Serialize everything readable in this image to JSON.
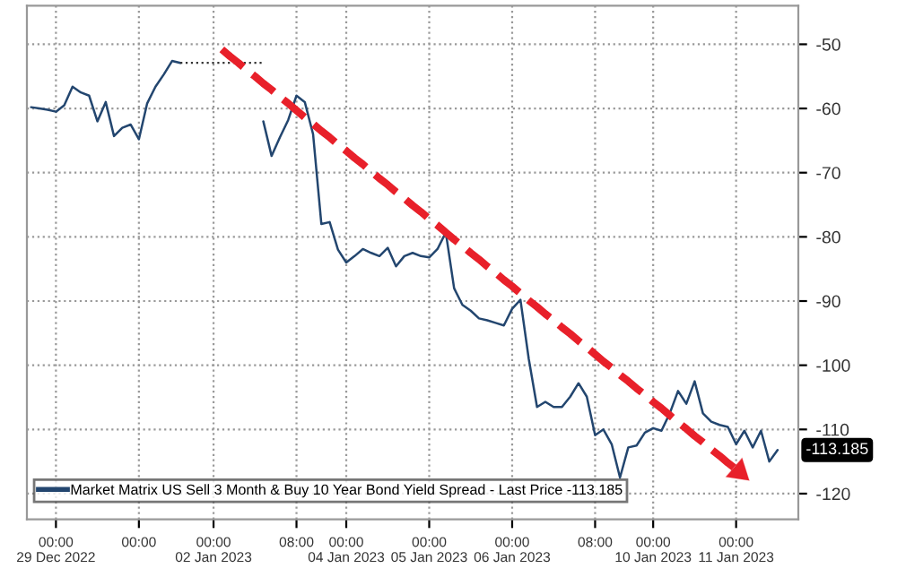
{
  "chart_data": {
    "type": "line",
    "categories": [
      null,
      null,
      null,
      "00:00\n29 Dec 2022",
      null,
      null,
      null,
      null,
      null,
      null,
      null,
      null,
      null,
      "00:00",
      null,
      null,
      null,
      null,
      null,
      null,
      null,
      null,
      "00:00\n02 Jan 2023",
      null,
      null,
      null,
      null,
      null,
      null,
      null,
      null,
      null,
      "08:00",
      null,
      null,
      null,
      null,
      null,
      "00:00\n04 Jan 2023",
      null,
      null,
      null,
      null,
      null,
      null,
      null,
      null,
      null,
      "00:00\n05 Jan 2023",
      null,
      null,
      null,
      null,
      null,
      null,
      null,
      null,
      null,
      "00:00\n06 Jan 2023",
      null,
      null,
      null,
      null,
      null,
      null,
      null,
      null,
      null,
      "08:00",
      null,
      null,
      null,
      null,
      null,
      null,
      "00:00\n10 Jan 2023",
      null,
      null,
      null,
      null,
      null,
      null,
      null,
      null,
      null,
      "00:00\n11 Jan 2023",
      null,
      null,
      null,
      null,
      null,
      null,
      null
    ],
    "series": [
      {
        "name": "Market Matrix US Sell 3 Month & Buy 10 Year Bond Yield Spread - Last Price -113.185",
        "color": "#23466f",
        "line_style": "solid",
        "values": [
          -59.8,
          -60,
          -60.2,
          -60.5,
          -59.5,
          -56.6,
          -57.5,
          -58,
          -62,
          -59,
          -64.3,
          -63,
          -62.5,
          -64.8,
          -59.2,
          -56.6,
          -54.7,
          -52.6,
          -52.9,
          null,
          null,
          null,
          null,
          null,
          null,
          null,
          null,
          null,
          -62,
          -67.4,
          -64.5,
          -61.8,
          -58,
          -59,
          -64,
          -78,
          -77.7,
          -82,
          -84,
          -83,
          -81.9,
          -82.5,
          -83,
          -81.7,
          -84.6,
          -83,
          -82.5,
          -83,
          -83.2,
          -81.9,
          -79.3,
          -88,
          -90.6,
          -91.5,
          -92.7,
          -93,
          -93.4,
          -93.8,
          -91.2,
          -89.8,
          -99,
          -106.5,
          -105.7,
          -106.5,
          -106.5,
          -104.9,
          -102.8,
          -104.9,
          -110.9,
          -110,
          -112.3,
          -117.5,
          -112.8,
          -112.5,
          -110.5,
          -109.8,
          -110.2,
          -107.5,
          -104,
          -106,
          -102.5,
          -107.5,
          -108.8,
          -109.3,
          -109.6,
          -112.3,
          -110.2,
          -112.8,
          -110.2,
          -115,
          -113.2,
          null,
          null
        ]
      },
      {
        "color": "#333333",
        "line_style": "dotted",
        "values": [
          null,
          null,
          null,
          null,
          null,
          null,
          null,
          null,
          null,
          null,
          null,
          null,
          null,
          null,
          null,
          null,
          null,
          null,
          -52.9,
          -52.9,
          -52.9,
          -52.9,
          -52.9,
          -52.9,
          -52.9,
          -52.9,
          -52.9,
          -52.9,
          -52.9,
          null,
          null,
          null,
          null,
          null,
          null,
          null,
          null,
          null,
          null,
          null,
          null,
          null,
          null,
          null,
          null,
          null,
          null,
          null,
          null,
          null,
          null,
          null,
          null,
          null,
          null,
          null,
          null,
          null,
          null,
          null,
          null,
          null,
          null,
          null,
          null,
          null,
          null,
          null,
          null,
          null,
          null,
          null,
          null,
          null,
          null,
          null,
          null,
          null,
          null,
          null,
          null,
          null,
          null,
          null,
          null,
          null,
          null,
          null,
          null,
          null,
          null,
          null,
          null
        ]
      },
      {
        "color": "#e8202a",
        "line_style": "dashed",
        "values": [
          null,
          null,
          null,
          null,
          null,
          null,
          null,
          null,
          null,
          null,
          null,
          null,
          null,
          null,
          null,
          null,
          null,
          null,
          null,
          null,
          null,
          null,
          null,
          -50.8,
          -51.9,
          -52.9,
          -54.0,
          -55.0,
          -56.1,
          -57.1,
          -58.2,
          -59.2,
          -60.3,
          -61.4,
          -62.4,
          -63.5,
          -64.5,
          -65.6,
          -66.6,
          -67.7,
          -68.7,
          -69.8,
          -70.9,
          -71.9,
          -73.0,
          -74.0,
          -75.1,
          -76.1,
          -77.2,
          -78.2,
          -79.3,
          -80.4,
          -81.4,
          -82.5,
          -83.5,
          -84.6,
          -85.6,
          -86.7,
          -87.7,
          -88.8,
          -89.9,
          -90.9,
          -92.0,
          -93.0,
          -94.1,
          -95.1,
          -96.2,
          -97.2,
          -98.3,
          -99.4,
          -100.4,
          -101.5,
          -102.5,
          -103.6,
          -104.6,
          -105.7,
          -106.7,
          -107.8,
          -108.9,
          -109.9,
          -111.0,
          -112.0,
          -113.1,
          -114.1,
          -115.2,
          -116.2,
          -117.3,
          null,
          null,
          null,
          null,
          null,
          null
        ]
      }
    ],
    "ylim": [
      -124,
      -44
    ],
    "yticks": [
      -50,
      -60,
      -70,
      -80,
      -90,
      -100,
      -110,
      -120
    ],
    "annotations": [
      "-113.185"
    ],
    "grid": true,
    "legend": "bottom left"
  }
}
